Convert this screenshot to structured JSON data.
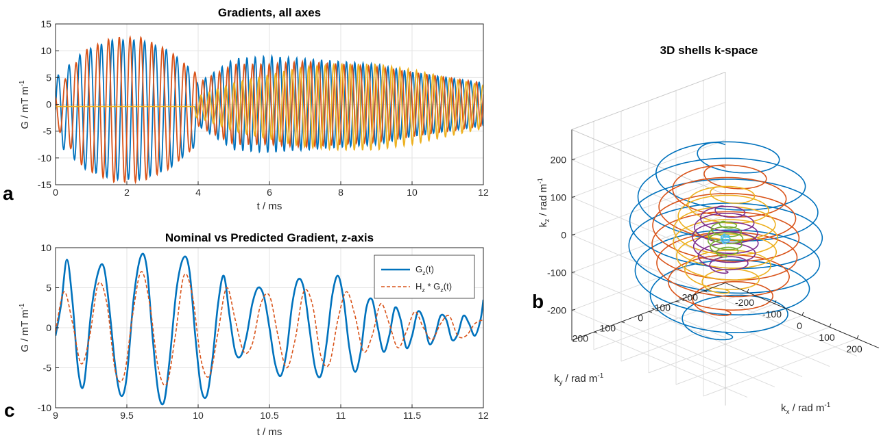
{
  "panel_labels": {
    "a": "a",
    "b": "b",
    "c": "c"
  },
  "colors": {
    "blue": "#0072BD",
    "orange": "#D95319",
    "yellow": "#EDB120",
    "purple": "#7E2F8E",
    "green": "#77AC30",
    "cyan": "#4DBEEE"
  },
  "chart_data": [
    {
      "id": "a",
      "type": "line",
      "title": "Gradients, all axes",
      "xlabel": "t / ms",
      "ylabel": {
        "base": "G / mT m",
        "sup": "-1"
      },
      "xlim": [
        0,
        12
      ],
      "ylim": [
        -15,
        15
      ],
      "xticks": [
        0,
        2,
        4,
        6,
        8,
        10,
        12
      ],
      "yticks": [
        -15,
        -10,
        -5,
        0,
        5,
        10,
        15
      ],
      "xtick_labels": [
        "0",
        "2",
        "4",
        "6",
        "8",
        "10",
        "12"
      ],
      "ytick_labels": [
        "-15",
        "-10",
        "-5",
        "0",
        "5",
        "10",
        "15"
      ],
      "grid": true,
      "series": [
        {
          "color": "#0072BD",
          "segments": [
            {
              "t0": 0,
              "t1": 3.95,
              "f": 3.3,
              "phase": 0,
              "amp": [
                [
                  0,
                  6
                ],
                [
                  0.8,
                  11
                ],
                [
                  1.6,
                  13
                ],
                [
                  2.4,
                  13
                ],
                [
                  3.2,
                  11
                ],
                [
                  3.9,
                  7
                ]
              ],
              "offset": -1
            },
            {
              "t0": 3.95,
              "t1": 12,
              "f": 4.3,
              "phase": 1.0,
              "amp": [
                [
                  4,
                  4
                ],
                [
                  5,
                  8.5
                ],
                [
                  6,
                  9
                ],
                [
                  7,
                  8.5
                ],
                [
                  8,
                  8
                ],
                [
                  9,
                  7.5
                ],
                [
                  10,
                  6
                ],
                [
                  11,
                  5
                ],
                [
                  12,
                  4
                ]
              ],
              "offset": 0
            }
          ]
        },
        {
          "color": "#D95319",
          "segments": [
            {
              "t0": 0,
              "t1": 3.95,
              "f": 3.3,
              "phase": 2.2,
              "amp": [
                [
                  0,
                  3
                ],
                [
                  0.8,
                  11
                ],
                [
                  1.6,
                  13.5
                ],
                [
                  2.4,
                  13.5
                ],
                [
                  3.2,
                  11
                ],
                [
                  3.9,
                  7
                ]
              ],
              "offset": -1
            },
            {
              "t0": 3.95,
              "t1": 12,
              "f": 4.3,
              "phase": 3.0,
              "amp": [
                [
                  4,
                  4
                ],
                [
                  5,
                  7.5
                ],
                [
                  6,
                  7.5
                ],
                [
                  7,
                  8
                ],
                [
                  8,
                  7.5
                ],
                [
                  9,
                  7
                ],
                [
                  10,
                  6
                ],
                [
                  11,
                  5
                ],
                [
                  12,
                  4
                ]
              ],
              "offset": 0
            }
          ]
        },
        {
          "color": "#EDB120",
          "segments": [
            {
              "t0": 0,
              "t1": 3.9,
              "f": 0,
              "phase": 0,
              "amp": [
                [
                  0,
                  0
                ],
                [
                  3.9,
                  0
                ]
              ],
              "offset": -0.4
            },
            {
              "t0": 3.9,
              "t1": 12,
              "f": 4.3,
              "phase": 4.5,
              "amp": [
                [
                  4,
                  2
                ],
                [
                  5,
                  4.5
                ],
                [
                  6,
                  6
                ],
                [
                  7,
                  7.5
                ],
                [
                  8,
                  8
                ],
                [
                  9,
                  8
                ],
                [
                  10,
                  7
                ],
                [
                  11,
                  5.5
                ],
                [
                  12,
                  4
                ]
              ],
              "offset": -0.5
            }
          ]
        }
      ]
    },
    {
      "id": "c",
      "type": "line",
      "title": "Nominal vs Predicted Gradient, z-axis",
      "xlabel": "t / ms",
      "ylabel": {
        "base": "G / mT m",
        "sup": "-1"
      },
      "xlim": [
        9,
        12
      ],
      "ylim": [
        -10,
        10
      ],
      "xticks": [
        9,
        9.5,
        10,
        10.5,
        11,
        11.5,
        12
      ],
      "yticks": [
        -10,
        -5,
        0,
        5,
        10
      ],
      "xtick_labels": [
        "9",
        "9.5",
        "10",
        "10.5",
        "11",
        "11.5",
        "12"
      ],
      "ytick_labels": [
        "-10",
        "-5",
        "0",
        "5",
        "10"
      ],
      "grid": true,
      "legend": {
        "position": "top-right",
        "entries": [
          {
            "main": "G",
            "sub": "z",
            "tail": "(t)",
            "style": "solid",
            "color": "#0072BD"
          },
          {
            "main": "H",
            "sub": "z",
            "tail": " * G",
            "sub2": "z",
            "tail2": "(t)",
            "style": "dashed",
            "color": "#D95319"
          }
        ]
      },
      "series": [
        {
          "name": "G_z(t)",
          "color": "#0072BD",
          "style": "solid",
          "x": [
            9.0,
            9.04,
            9.08,
            9.12,
            9.16,
            9.2,
            9.25,
            9.3,
            9.34,
            9.38,
            9.42,
            9.46,
            9.5,
            9.55,
            9.6,
            9.64,
            9.68,
            9.72,
            9.76,
            9.8,
            9.85,
            9.9,
            9.94,
            9.98,
            10.02,
            10.06,
            10.1,
            10.14,
            10.18,
            10.22,
            10.26,
            10.3,
            10.34,
            10.38,
            10.42,
            10.46,
            10.5,
            10.54,
            10.58,
            10.62,
            10.66,
            10.7,
            10.74,
            10.78,
            10.82,
            10.86,
            10.9,
            10.94,
            10.98,
            11.02,
            11.06,
            11.1,
            11.14,
            11.18,
            11.22,
            11.26,
            11.3,
            11.34,
            11.38,
            11.42,
            11.46,
            11.5,
            11.54,
            11.58,
            11.62,
            11.66,
            11.7,
            11.74,
            11.78,
            11.82,
            11.86,
            11.9,
            11.94,
            11.98,
            12.0
          ],
          "y": [
            -1.0,
            3.0,
            8.5,
            3.0,
            -5.5,
            -7.0,
            2.0,
            7.0,
            7.5,
            2.0,
            -5.0,
            -8.5,
            -6.0,
            4.0,
            9.0,
            7.5,
            -1.0,
            -8.0,
            -9.3,
            -4.0,
            5.0,
            8.8,
            7.0,
            -1.0,
            -7.5,
            -8.5,
            -4.0,
            3.0,
            6.5,
            1.5,
            -3.0,
            -3.5,
            -1.0,
            3.0,
            5.0,
            4.0,
            0.0,
            -4.5,
            -6.0,
            -3.0,
            3.0,
            6.0,
            5.0,
            0.0,
            -5.0,
            -6.0,
            -2.0,
            4.0,
            6.5,
            3.5,
            -2.5,
            -5.5,
            -3.0,
            2.5,
            3.5,
            0.0,
            -3.0,
            -1.0,
            2.5,
            1.0,
            -2.5,
            -1.0,
            2.0,
            1.0,
            -2.0,
            -1.0,
            1.5,
            1.0,
            -1.5,
            -0.8,
            1.5,
            0.5,
            -1.0,
            1.0,
            3.5
          ]
        },
        {
          "name": "H_z * G_z(t)",
          "color": "#D95319",
          "style": "dashed",
          "x": [
            9.0,
            9.06,
            9.12,
            9.18,
            9.24,
            9.3,
            9.36,
            9.42,
            9.48,
            9.54,
            9.6,
            9.66,
            9.72,
            9.78,
            9.84,
            9.9,
            9.96,
            10.02,
            10.08,
            10.14,
            10.2,
            10.26,
            10.32,
            10.38,
            10.44,
            10.5,
            10.56,
            10.62,
            10.68,
            10.74,
            10.8,
            10.86,
            10.92,
            10.98,
            11.04,
            11.1,
            11.16,
            11.22,
            11.28,
            11.34,
            11.4,
            11.46,
            11.52,
            11.58,
            11.64,
            11.7,
            11.76,
            11.82,
            11.88,
            11.94,
            12.0
          ],
          "y": [
            -0.5,
            4.5,
            0.5,
            -4.5,
            -1.0,
            5.5,
            3.0,
            -5.5,
            -6.0,
            1.5,
            7.0,
            3.0,
            -5.0,
            -7.0,
            -1.0,
            6.5,
            4.0,
            -4.0,
            -6.0,
            -0.5,
            5.0,
            1.0,
            -3.0,
            -2.0,
            3.0,
            4.0,
            -1.0,
            -5.0,
            -1.5,
            4.5,
            3.0,
            -3.5,
            -4.5,
            1.0,
            4.5,
            1.5,
            -3.0,
            -1.0,
            3.0,
            0.5,
            -2.5,
            -0.5,
            2.0,
            0.0,
            -1.5,
            0.5,
            1.5,
            -1.0,
            -1.0,
            0.5,
            1.0
          ]
        }
      ]
    },
    {
      "id": "b",
      "type": "line",
      "title": "3D shells k-space",
      "xlabel": {
        "base": "k",
        "sub": "x",
        "tail": " / rad m",
        "sup": "-1"
      },
      "ylabel": {
        "base": "k",
        "sub": "y",
        "tail": " / rad m",
        "sup": "-1"
      },
      "zlabel": {
        "base": "k",
        "sub": "z",
        "tail": " / rad m",
        "sup": "-1"
      },
      "xlim": [
        -280,
        280
      ],
      "ylim": [
        -280,
        280
      ],
      "zlim": [
        -280,
        280
      ],
      "xticks": [
        -200,
        -100,
        0,
        100,
        200
      ],
      "yticks": [
        200,
        100,
        0,
        -100,
        -200
      ],
      "zticks": [
        200,
        100,
        0,
        -100,
        -200
      ],
      "xtick_labels": [
        "-200",
        "-100",
        "0",
        "100",
        "200"
      ],
      "ytick_labels": [
        "200",
        "100",
        "0",
        "-100",
        "-200"
      ],
      "ztick_labels": [
        "200",
        "100",
        "0",
        "-100",
        "-200"
      ],
      "grid": true,
      "series": [
        {
          "color": "#0072BD",
          "radius": 250,
          "turns": 7.5
        },
        {
          "color": "#D95319",
          "radius": 190,
          "turns": 7.5
        },
        {
          "color": "#EDB120",
          "radius": 135,
          "turns": 7.5
        },
        {
          "color": "#7E2F8E",
          "radius": 85,
          "turns": 6.5
        },
        {
          "color": "#77AC30",
          "radius": 45,
          "turns": 5.5
        },
        {
          "color": "#4DBEEE",
          "radius": 12,
          "turns": 3.5
        }
      ]
    }
  ]
}
